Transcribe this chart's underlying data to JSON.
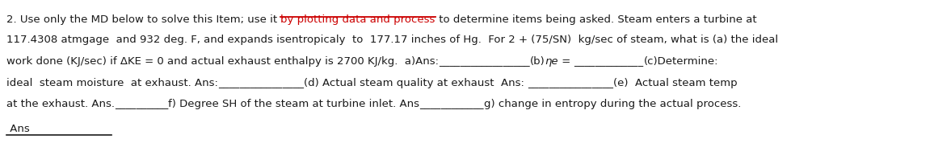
{
  "bg_color": "#ffffff",
  "text_color": "#1a1a1a",
  "link_color": "#cc0000",
  "font_size": 9.5,
  "font_family": "DejaVu Sans",
  "lines": [
    {
      "segments": [
        {
          "text": "2. Use only the MD below to solve this Item; use it ",
          "color": "#1a1a1a",
          "style": "normal",
          "underline": false
        },
        {
          "text": "by plotting data and process",
          "color": "#cc0000",
          "style": "normal",
          "underline": true
        },
        {
          "text": " to determine items being asked. Steam enters a turbine at",
          "color": "#1a1a1a",
          "style": "normal",
          "underline": false
        }
      ]
    },
    {
      "segments": [
        {
          "text": "117.4308 atmgage  and 932 deg. F, and expands isentropicaly  to  177.17 inches of Hg.  For 2 + (75/SN)  kg/sec of steam, what is (a) the ideal",
          "color": "#1a1a1a",
          "style": "normal",
          "underline": false
        }
      ]
    },
    {
      "segments": [
        {
          "text": "work done (KJ/sec) if ΔKE = 0 and actual exhaust enthalpy is 2700 KJ/kg.  a)Ans:",
          "color": "#1a1a1a",
          "style": "normal",
          "underline": false
        },
        {
          "text": "_________________",
          "color": "#1a1a1a",
          "style": "normal",
          "underline": false
        },
        {
          "text": "(b)",
          "color": "#1a1a1a",
          "style": "normal",
          "underline": false
        },
        {
          "text": "ηe",
          "color": "#1a1a1a",
          "style": "italic",
          "underline": false
        },
        {
          "text": " = ",
          "color": "#1a1a1a",
          "style": "normal",
          "underline": false
        },
        {
          "text": "_____________",
          "color": "#1a1a1a",
          "style": "normal",
          "underline": false
        },
        {
          "text": "(c)Determine:",
          "color": "#1a1a1a",
          "style": "normal",
          "underline": false
        }
      ]
    },
    {
      "segments": [
        {
          "text": "ideal  steam moisture  at exhaust. Ans:",
          "color": "#1a1a1a",
          "style": "normal",
          "underline": false
        },
        {
          "text": "________________",
          "color": "#1a1a1a",
          "style": "normal",
          "underline": false
        },
        {
          "text": "(d) Actual steam quality at exhaust  Ans: ",
          "color": "#1a1a1a",
          "style": "normal",
          "underline": false
        },
        {
          "text": "________________",
          "color": "#1a1a1a",
          "style": "normal",
          "underline": false
        },
        {
          "text": "(e)  Actual steam temp",
          "color": "#1a1a1a",
          "style": "normal",
          "underline": false
        }
      ]
    },
    {
      "segments": [
        {
          "text": "at the exhaust. Ans.",
          "color": "#1a1a1a",
          "style": "normal",
          "underline": false
        },
        {
          "text": "__________",
          "color": "#1a1a1a",
          "style": "normal",
          "underline": false
        },
        {
          "text": "f) Degree SH of the steam at turbine inlet. Ans",
          "color": "#1a1a1a",
          "style": "normal",
          "underline": false
        },
        {
          "text": "____________",
          "color": "#1a1a1a",
          "style": "normal",
          "underline": false
        },
        {
          "text": "g) change in entropy during the actual process.",
          "color": "#1a1a1a",
          "style": "normal",
          "underline": false
        }
      ]
    },
    {
      "segments": [
        {
          "text": " Ans",
          "color": "#1a1a1a",
          "style": "normal",
          "underline": false
        }
      ],
      "has_underline_below": true
    }
  ]
}
